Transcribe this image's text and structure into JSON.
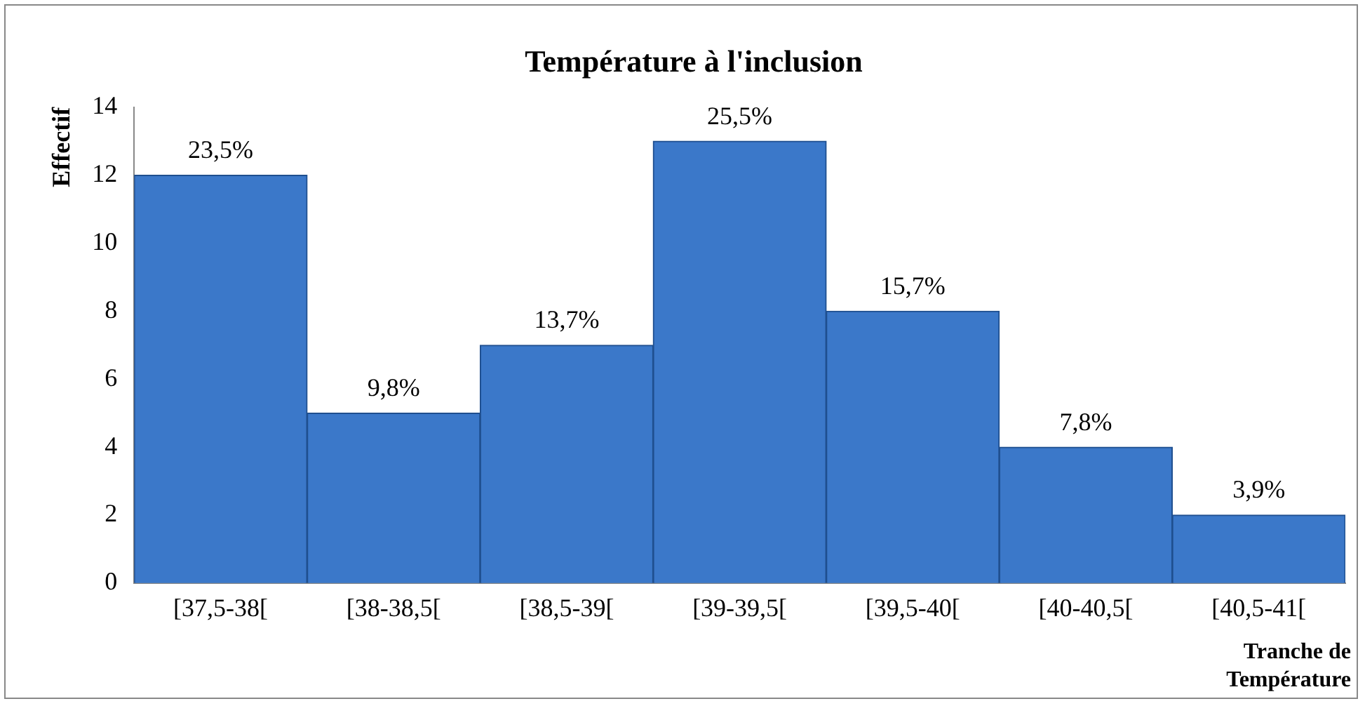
{
  "chart_data": {
    "type": "bar",
    "title": "Température à l'inclusion",
    "xlabel": "Tranche de Température",
    "ylabel": "Effectif",
    "categories": [
      "[37,5-38[",
      "[38-38,5[",
      "[38,5-39[",
      "[39-39,5[",
      "[39,5-40[",
      "[40-40,5[",
      "[40,5-41["
    ],
    "values": [
      12,
      5,
      7,
      13,
      8,
      4,
      2
    ],
    "annotations": [
      {
        "text": "23,5%",
        "x": "[37,5-38[",
        "y": 12
      },
      {
        "text": "9,8%",
        "x": "[38-38,5[",
        "y": 5
      },
      {
        "text": "13,7%",
        "x": "[38,5-39[",
        "y": 7
      },
      {
        "text": "25,5%",
        "x": "[39-39,5[",
        "y": 13
      },
      {
        "text": "15,7%",
        "x": "[39,5-40[",
        "y": 8
      },
      {
        "text": "7,8%",
        "x": "[40-40,5[",
        "y": 4
      },
      {
        "text": "3,9%",
        "x": "[40,5-41[",
        "y": 2
      }
    ],
    "color": "#3b78c9",
    "ylim": [
      0,
      14
    ],
    "yticks": [
      0,
      2,
      4,
      6,
      8,
      10,
      12,
      14
    ],
    "grid": false,
    "legend": false
  }
}
